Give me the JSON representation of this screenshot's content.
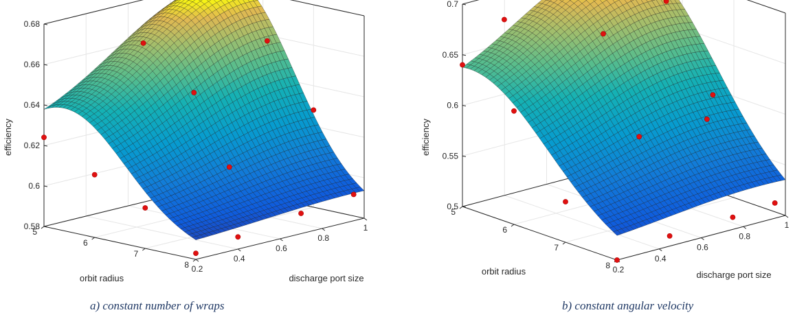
{
  "chart_data": [
    {
      "type": "surface",
      "caption": "a) constant number of wraps",
      "xlabel": "orbit radius",
      "ylabel": "discharge port size",
      "zlabel": "efficiency",
      "x_ticks": [
        "5",
        "6",
        "7",
        "8"
      ],
      "y_ticks": [
        "0.2",
        "0.4",
        "0.6",
        "0.8",
        "1"
      ],
      "z_ticks": [
        "0.58",
        "0.6",
        "0.62",
        "0.64",
        "0.66",
        "0.68"
      ],
      "xlim": [
        5,
        8
      ],
      "ylim": [
        0.2,
        1
      ],
      "zlim": [
        0.58,
        0.68
      ],
      "colormap": "parula",
      "marker_color": "#e01010",
      "surface_coeffs": {
        "base": 0.58,
        "peak": 0.096,
        "description_free": true
      },
      "points": [
        {
          "x": 5.0,
          "y": 0.2,
          "z": 0.624
        },
        {
          "x": 5.3,
          "y": 0.6,
          "z": 0.662
        },
        {
          "x": 5.4,
          "y": 1.0,
          "z": 0.678
        },
        {
          "x": 6.0,
          "y": 0.2,
          "z": 0.611
        },
        {
          "x": 6.3,
          "y": 0.6,
          "z": 0.643
        },
        {
          "x": 6.5,
          "y": 0.9,
          "z": 0.662
        },
        {
          "x": 7.0,
          "y": 0.2,
          "z": 0.6
        },
        {
          "x": 7.0,
          "y": 0.6,
          "z": 0.61
        },
        {
          "x": 7.0,
          "y": 1.0,
          "z": 0.628
        },
        {
          "x": 8.0,
          "y": 0.2,
          "z": 0.583
        },
        {
          "x": 8.0,
          "y": 0.4,
          "z": 0.586
        },
        {
          "x": 8.0,
          "y": 0.7,
          "z": 0.59
        },
        {
          "x": 8.0,
          "y": 0.95,
          "z": 0.593
        }
      ]
    },
    {
      "type": "surface",
      "caption": "b) constant angular velocity",
      "xlabel": "orbit radius",
      "ylabel": "discharge port size",
      "zlabel": "efficiency",
      "x_ticks": [
        "5",
        "6",
        "7",
        "8"
      ],
      "y_ticks": [
        "0.2",
        "0.4",
        "0.6",
        "0.8",
        "1"
      ],
      "z_ticks": [
        "0.5",
        "0.55",
        "0.6",
        "0.65",
        "0.7"
      ],
      "xlim": [
        5,
        8
      ],
      "ylim": [
        0.2,
        1
      ],
      "zlim": [
        0.5,
        0.7
      ],
      "colormap": "parula",
      "marker_color": "#e01010",
      "points": [
        {
          "x": 5.0,
          "y": 0.2,
          "z": 0.64
        },
        {
          "x": 5.3,
          "y": 0.6,
          "z": 0.69
        },
        {
          "x": 5.5,
          "y": 0.95,
          "z": 0.71
        },
        {
          "x": 5.2,
          "y": 0.35,
          "z": 0.68
        },
        {
          "x": 6.0,
          "y": 0.2,
          "z": 0.612
        },
        {
          "x": 6.1,
          "y": 0.6,
          "z": 0.668
        },
        {
          "x": 6.3,
          "y": 0.85,
          "z": 0.69
        },
        {
          "x": 7.0,
          "y": 0.2,
          "z": 0.54
        },
        {
          "x": 7.0,
          "y": 0.55,
          "z": 0.585
        },
        {
          "x": 7.0,
          "y": 0.9,
          "z": 0.607
        },
        {
          "x": 7.5,
          "y": 0.75,
          "z": 0.6
        },
        {
          "x": 8.0,
          "y": 0.2,
          "z": 0.5
        },
        {
          "x": 8.0,
          "y": 0.45,
          "z": 0.51
        },
        {
          "x": 8.0,
          "y": 0.75,
          "z": 0.512
        },
        {
          "x": 8.0,
          "y": 0.95,
          "z": 0.515
        }
      ]
    }
  ]
}
